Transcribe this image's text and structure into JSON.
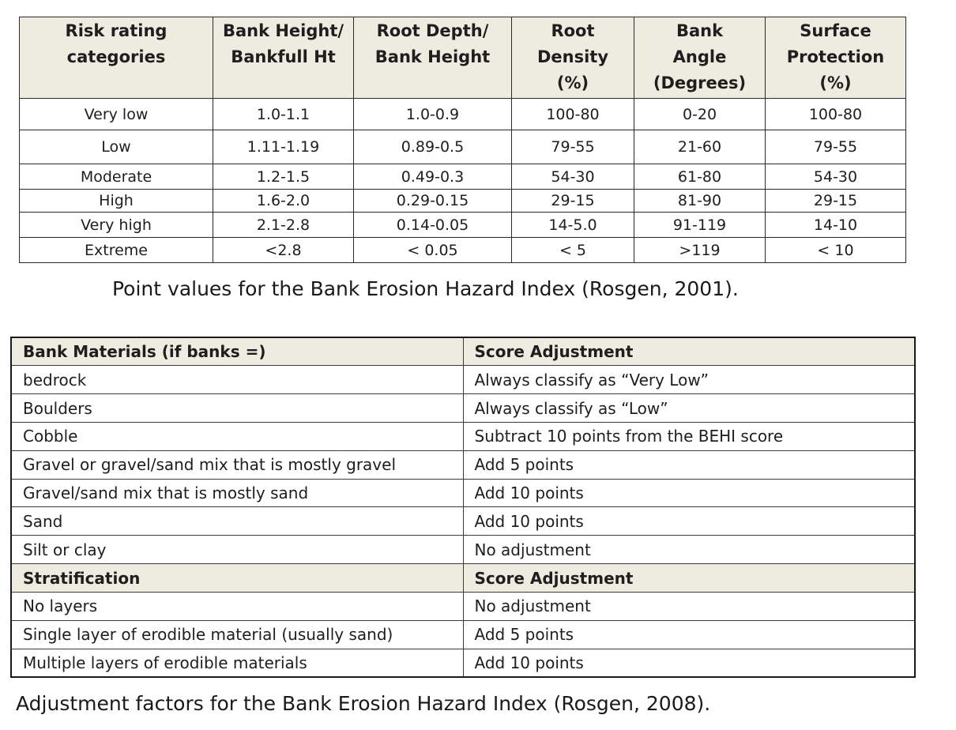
{
  "table1": {
    "headers": [
      [
        "Risk rating",
        "categories"
      ],
      [
        "Bank Height/",
        "Bankfull Ht"
      ],
      [
        "Root Depth/",
        "Bank Height"
      ],
      [
        "Root",
        "Density",
        "(%)"
      ],
      [
        "Bank",
        "Angle",
        "(Degrees)"
      ],
      [
        "Surface",
        "Protection",
        "(%)"
      ]
    ],
    "rows": [
      [
        "Very low",
        "1.0-1.1",
        "1.0-0.9",
        "100-80",
        "0-20",
        "100-80"
      ],
      [
        "Low",
        "1.11-1.19",
        "0.89-0.5",
        "79-55",
        "21-60",
        "79-55"
      ],
      [
        "Moderate",
        "1.2-1.5",
        "0.49-0.3",
        "54-30",
        "61-80",
        "54-30"
      ],
      [
        "High",
        "1.6-2.0",
        "0.29-0.15",
        "29-15",
        "81-90",
        "29-15"
      ],
      [
        "Very high",
        "2.1-2.8",
        "0.14-0.05",
        "14-5.0",
        "91-119",
        "14-10"
      ],
      [
        "Extreme",
        "<2.8",
        "< 0.05",
        "< 5",
        ">119",
        "< 10"
      ]
    ]
  },
  "caption1": "Point values for the Bank Erosion Hazard Index (Rosgen, 2001).",
  "table2": {
    "sections": [
      {
        "header": [
          "Bank Materials (if banks =)",
          "Score Adjustment"
        ],
        "rows": [
          [
            "bedrock",
            "Always classify as “Very Low”"
          ],
          [
            "Boulders",
            "Always classify as “Low”"
          ],
          [
            "Cobble",
            "Subtract 10 points from the BEHI score"
          ],
          [
            "Gravel or gravel/sand mix that is mostly gravel",
            "Add 5 points"
          ],
          [
            "Gravel/sand mix that is mostly sand",
            "Add 10 points"
          ],
          [
            "Sand",
            "Add 10 points"
          ],
          [
            "Silt or clay",
            "No adjustment"
          ]
        ]
      },
      {
        "header": [
          "Stratification",
          "Score Adjustment"
        ],
        "rows": [
          [
            "No layers",
            "No adjustment"
          ],
          [
            "Single layer of erodible material (usually sand)",
            "Add 5 points"
          ],
          [
            "Multiple layers of erodible materials",
            "Add 10 points"
          ]
        ]
      }
    ]
  },
  "caption2": "Adjustment factors for the Bank Erosion Hazard Index (Rosgen, 2008).",
  "colors": {
    "header_bg": "#eeece1",
    "border": "#2a2a2a"
  }
}
